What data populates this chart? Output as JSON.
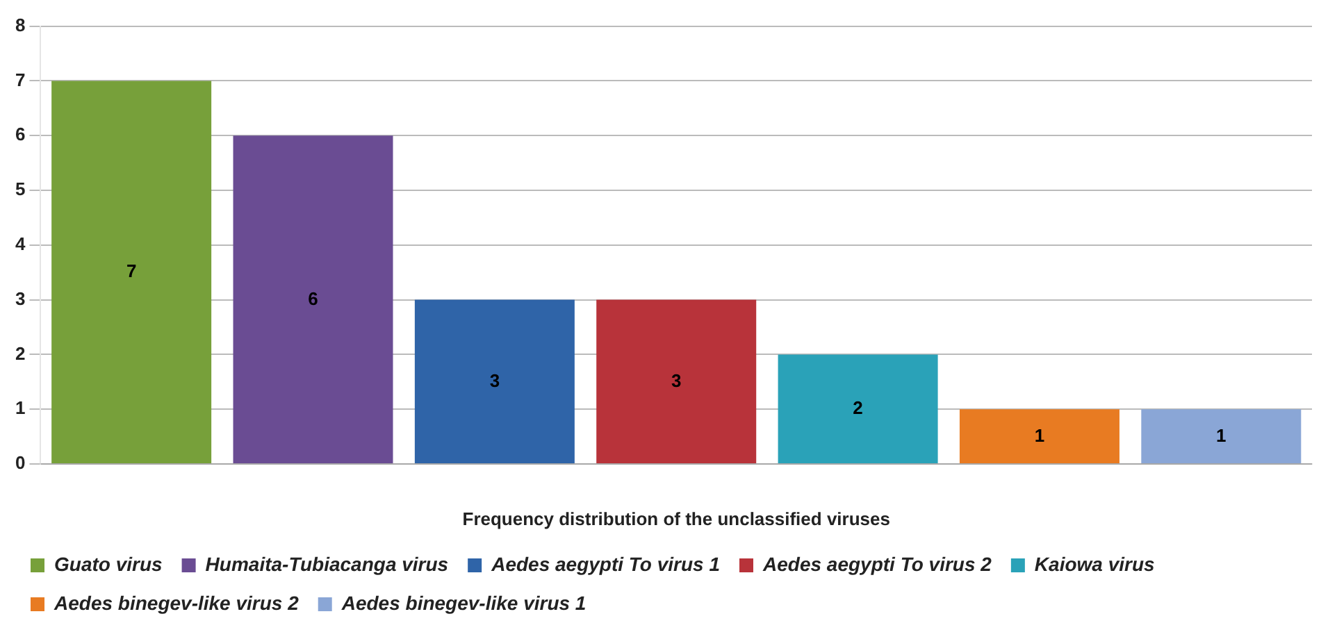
{
  "chart_data": {
    "type": "bar",
    "xlabel": "Frequency distribution of the unclassified viruses",
    "categories": [
      null,
      null,
      null,
      null,
      null,
      null,
      null
    ],
    "series": [
      {
        "name": "Guato virus",
        "color": "#77a03a",
        "values": [
          7,
          null,
          null,
          null,
          null,
          null,
          null
        ]
      },
      {
        "name": "Humaita-Tubiacanga virus",
        "color": "#6a4c93",
        "values": [
          null,
          6,
          null,
          null,
          null,
          null,
          null
        ]
      },
      {
        "name": "Aedes aegypti To virus 1",
        "color": "#2f64a8",
        "values": [
          null,
          null,
          3,
          null,
          null,
          null,
          null
        ]
      },
      {
        "name": "Aedes aegypti To virus 2",
        "color": "#b8333a",
        "values": [
          null,
          null,
          null,
          3,
          null,
          null,
          null
        ]
      },
      {
        "name": "Kaiowa virus",
        "color": "#2aa2b8",
        "values": [
          null,
          null,
          null,
          null,
          2,
          null,
          null
        ]
      },
      {
        "name": "Aedes binegev-like virus 2",
        "color": "#e87b22",
        "values": [
          null,
          null,
          null,
          null,
          null,
          1,
          null
        ]
      },
      {
        "name": "Aedes binegev-like virus 1",
        "color": "#8aa6d6",
        "values": [
          null,
          null,
          null,
          null,
          null,
          null,
          1
        ]
      }
    ],
    "ylim": [
      0,
      8
    ],
    "yticks": [
      0,
      1,
      2,
      3,
      4,
      5,
      6,
      7,
      8
    ],
    "grid": "y",
    "legend": "bottom",
    "data_labels": true
  }
}
